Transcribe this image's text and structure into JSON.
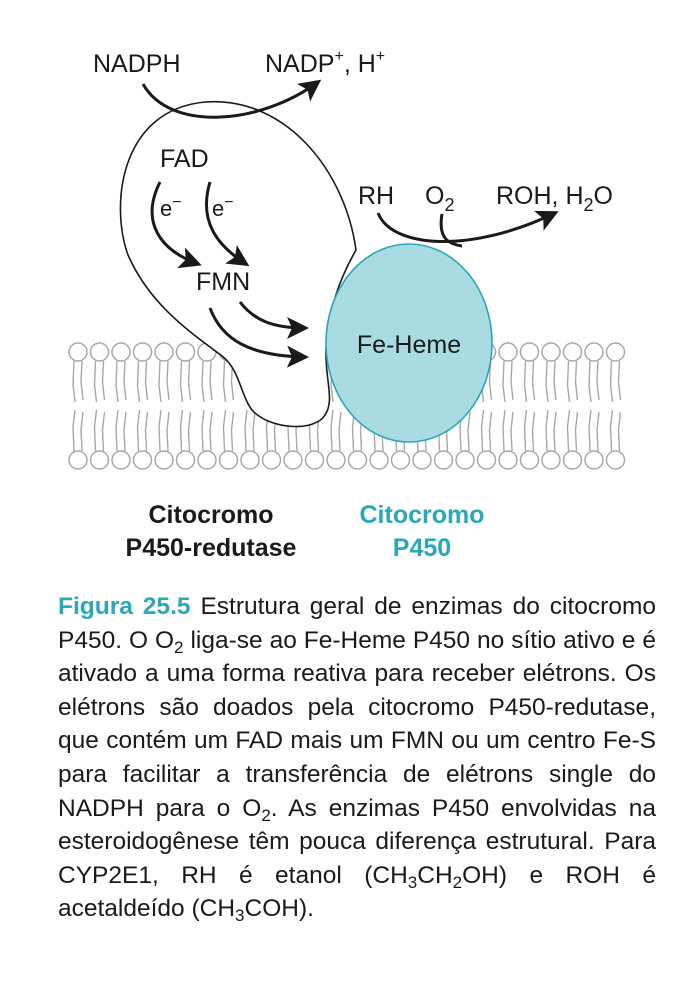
{
  "diagram": {
    "labels": {
      "nadph": "NADPH",
      "nadp_plus": "NADP",
      "nadp_plus_sup": "+",
      "h_plus_prefix": ", H",
      "h_plus_sup": "+",
      "fad": "FAD",
      "electron_1": "e",
      "electron_1_sup": "−",
      "electron_2": "e",
      "electron_2_sup": "−",
      "fmn": "FMN",
      "rh": "RH",
      "o2": "O",
      "o2_sub": "2",
      "roh": "ROH, H",
      "roh_sub": "2",
      "roh_tail": "O",
      "heme": "Fe-Heme"
    },
    "reductase_name": [
      "Citocromo",
      "P450-redutase"
    ],
    "p450_name": [
      "Citocromo",
      "P450"
    ],
    "colors": {
      "p450_fill": "#a8dbe2",
      "teal_text": "#2aa7b8",
      "membrane": "#a8a8a8"
    }
  },
  "caption": {
    "figure_label": "Figura 25.5",
    "t1": " Estrutura geral de enzimas do citocromo P450. O O",
    "s1": "2",
    "t2": " liga-se ao Fe-Heme P450 no sítio ativo e é ativado a uma forma reativa para receber elétrons. Os elétrons são doados pela citocromo P450-redutase, que contém um FAD mais um FMN ou um centro Fe-S para facilitar a transferência de elétrons single do NADPH para o O",
    "s2": "2",
    "t3": ". As enzimas P450 envolvidas na esteroidogênese têm pouca diferença estrutural. Para CYP2E1, RH é etanol (CH",
    "s3": "3",
    "t4": "CH",
    "s4": "2",
    "t5": "OH) e ROH é acetaldeído (CH",
    "s5": "3",
    "t6": "COH)."
  }
}
